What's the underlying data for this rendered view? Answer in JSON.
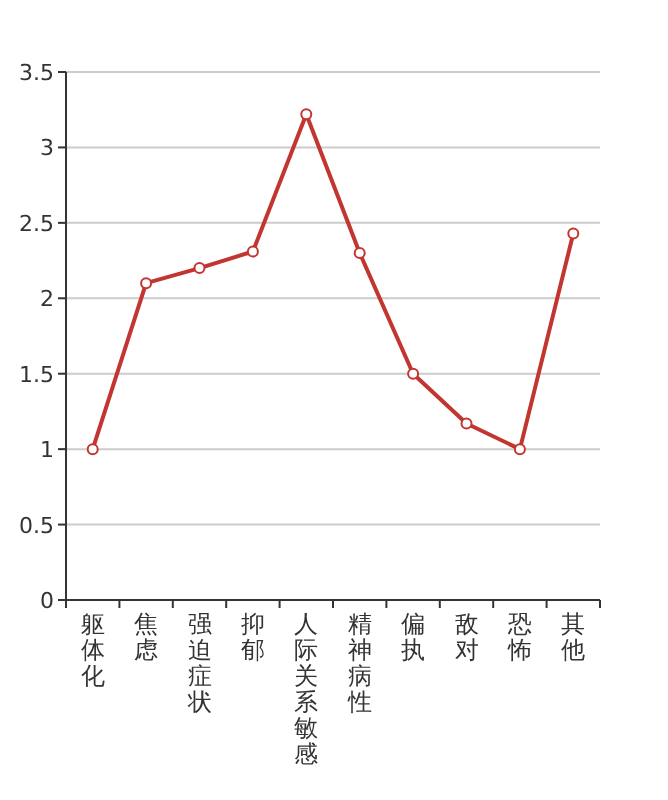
{
  "chart_data": {
    "type": "line",
    "categories": [
      "躯体化",
      "焦虑",
      "强迫症状",
      "抑郁",
      "人际关系敏感",
      "精神病性",
      "偏执",
      "敌对",
      "恐怖",
      "其他"
    ],
    "series": [
      {
        "color": "#c23531",
        "values": [
          1.0,
          2.1,
          2.2,
          2.31,
          3.22,
          2.3,
          1.5,
          1.17,
          1.0,
          2.43
        ]
      }
    ],
    "ylim": [
      0,
      3.5
    ],
    "yticks": [
      0,
      0.5,
      1,
      1.5,
      2,
      2.5,
      3,
      3.5
    ],
    "grid": "y",
    "marker": "circle",
    "line_style": "solid"
  }
}
